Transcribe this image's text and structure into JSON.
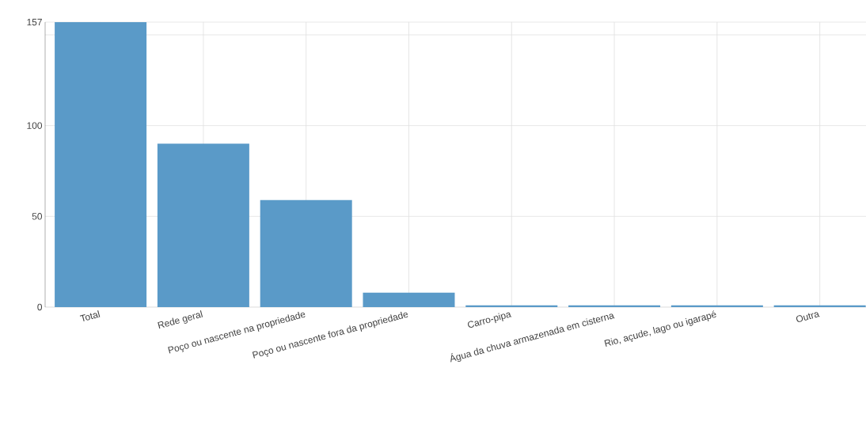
{
  "chart_data": {
    "type": "bar",
    "categories": [
      "Total",
      "Rede geral",
      "Poço ou nascente na propriedade",
      "Poço ou nascente fora da propriedade",
      "Carro-pipa",
      "Água da chuva armazenada em cisterna",
      "Rio, açude, lago ou igarapé",
      "Outra"
    ],
    "values": [
      157,
      90,
      59,
      8,
      1,
      1,
      1,
      1
    ],
    "color": "#5a9ac8",
    "ylim": [
      0,
      157
    ],
    "yticks": [
      0,
      50,
      100,
      {
        "value": 150,
        "label": null
      },
      157
    ],
    "grid": true
  }
}
